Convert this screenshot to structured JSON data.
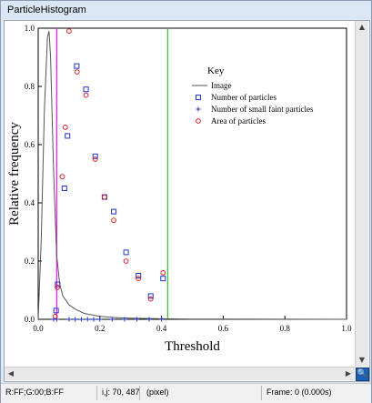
{
  "window": {
    "title": "ParticleHistogram"
  },
  "status": {
    "color": "R:FF;G:00;B:FF",
    "position": "i,j: 70, 487",
    "unit": "(pixel)",
    "frame": "Frame: 0 (0.000s)"
  },
  "scroll": {
    "up_icon": "arrow-up",
    "down_icon": "arrow-down",
    "left_icon": "arrow-left",
    "right_icon": "arrow-right",
    "zoom_icon": "magnifier"
  },
  "chart_data": {
    "type": "scatter",
    "xlabel": "Threshold",
    "ylabel": "Relative frequency",
    "xlim": [
      0,
      1
    ],
    "ylim": [
      0,
      1
    ],
    "x_ticks": [
      "0.0",
      "0.2",
      "0.4",
      "0.6",
      "0.8",
      "1.0"
    ],
    "y_ticks": [
      "0.0",
      "0.2",
      "0.4",
      "0.6",
      "0.8",
      "1.0"
    ],
    "grid": false,
    "legend": {
      "title": "Key",
      "placement": "top-right"
    },
    "series": [
      {
        "name": "Image",
        "kind": "line",
        "color": "#555555",
        "x": [
          0.0,
          0.01,
          0.02,
          0.03,
          0.035,
          0.04,
          0.05,
          0.06,
          0.07,
          0.08,
          0.1,
          0.12,
          0.15,
          0.2,
          0.25,
          0.3,
          0.4,
          0.5,
          1.0
        ],
        "y": [
          0.0,
          0.28,
          0.72,
          0.97,
          0.99,
          0.9,
          0.5,
          0.22,
          0.12,
          0.08,
          0.05,
          0.035,
          0.02,
          0.01,
          0.006,
          0.004,
          0.002,
          0.001,
          0.0
        ]
      },
      {
        "name": "Number of particles",
        "kind": "square",
        "color": "#2233cc",
        "x": [
          0.058,
          0.063,
          0.085,
          0.095,
          0.125,
          0.155,
          0.185,
          0.215,
          0.245,
          0.285,
          0.325,
          0.365,
          0.405
        ],
        "y": [
          0.03,
          0.12,
          0.45,
          0.63,
          0.87,
          0.79,
          0.56,
          0.42,
          0.37,
          0.23,
          0.15,
          0.08,
          0.14
        ]
      },
      {
        "name": "Number of small faint particles",
        "kind": "plus",
        "color": "#2233cc",
        "x": [
          0.05,
          0.06,
          0.1,
          0.12,
          0.14,
          0.16,
          0.18,
          0.2,
          0.24,
          0.28,
          0.32,
          0.36,
          0.4
        ],
        "y": [
          0.0,
          0.0,
          0.0,
          0.0,
          0.0,
          0.0,
          0.0,
          0.0,
          0.0,
          0.0,
          0.0,
          0.0,
          0.0
        ]
      },
      {
        "name": "Area of particles",
        "kind": "circle",
        "color": "#dd2222",
        "x": [
          0.055,
          0.062,
          0.078,
          0.088,
          0.1,
          0.126,
          0.155,
          0.185,
          0.215,
          0.245,
          0.285,
          0.325,
          0.365,
          0.405
        ],
        "y": [
          0.01,
          0.11,
          0.49,
          0.66,
          0.99,
          0.85,
          0.77,
          0.55,
          0.42,
          0.34,
          0.2,
          0.14,
          0.07,
          0.16
        ]
      }
    ],
    "vlines": [
      {
        "x": 0.06,
        "color": "#ee22ee"
      },
      {
        "x": 0.42,
        "color": "#33cc33"
      }
    ]
  }
}
